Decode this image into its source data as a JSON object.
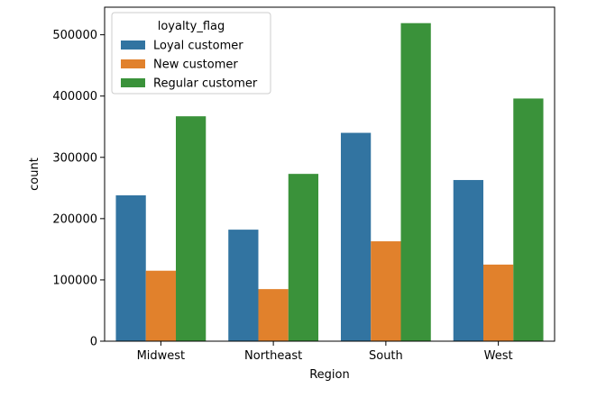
{
  "chart_data": {
    "type": "bar",
    "categories": [
      "Midwest",
      "Northeast",
      "South",
      "West"
    ],
    "series": [
      {
        "name": "Loyal customer",
        "color": "#3274a1",
        "values": [
          238000,
          182000,
          340000,
          263000
        ]
      },
      {
        "name": "New customer",
        "color": "#e1812c",
        "values": [
          115000,
          85000,
          163000,
          125000
        ]
      },
      {
        "name": "Regular customer",
        "color": "#3a923a",
        "values": [
          367000,
          273000,
          519000,
          396000
        ]
      }
    ],
    "xlabel": "Region",
    "ylabel": "count",
    "ylim": [
      0,
      545000
    ],
    "yticks": [
      0,
      100000,
      200000,
      300000,
      400000,
      500000
    ],
    "grid": false,
    "legend": {
      "title": "loyalty_flag",
      "placement": "top-left"
    }
  }
}
